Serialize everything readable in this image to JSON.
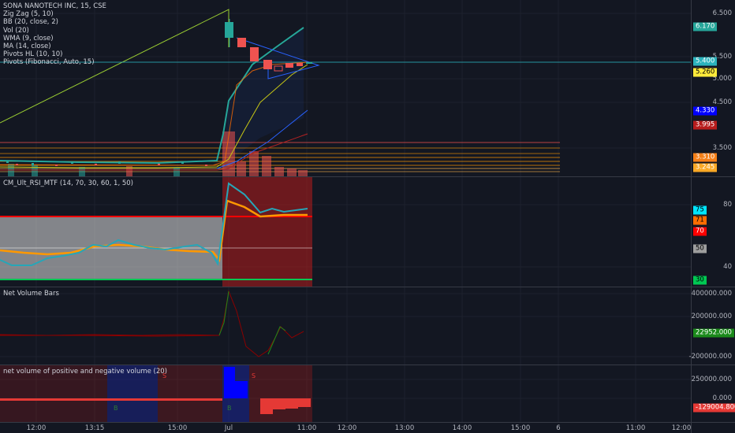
{
  "main": {
    "legend": [
      "SONA NANOTECH INC, 15, CSE",
      "Zig Zag (5, 10)",
      "BB (20, close, 2)",
      "Vol (20)",
      "WMA (9, close)",
      "MA (14, close)",
      "Pivots HL (10, 10)",
      "Pivots (Fibonacci, Auto, 15)"
    ],
    "ticks": [
      "6.500",
      "5.500",
      "5.000",
      "4.500",
      "3.500"
    ],
    "tags": [
      {
        "text": "6.170",
        "bg": "#26a69a",
        "fg": "#ffffff"
      },
      {
        "text": "5.400",
        "bg": "#2bb3bd",
        "fg": "#ffffff"
      },
      {
        "text": "5.260",
        "bg": "#ffeb3b",
        "fg": "#000000"
      },
      {
        "text": "4.330",
        "bg": "#0000ff",
        "fg": "#ffffff"
      },
      {
        "text": "3.995",
        "bg": "#b71c1c",
        "fg": "#ffffff"
      },
      {
        "text": "3.310",
        "bg": "#f57f17",
        "fg": "#ffffff"
      },
      {
        "text": "3.245",
        "bg": "#f9a825",
        "fg": "#ffffff"
      }
    ]
  },
  "rsi": {
    "legend": "CM_Ult_RSI_MTF (14, 70, 30, 60, 1, 50)",
    "ticks": [
      "80",
      "40"
    ],
    "tags": [
      {
        "text": "75",
        "bg": "#00e5ff",
        "fg": "#000000"
      },
      {
        "text": "71",
        "bg": "#ff6d00",
        "fg": "#000000"
      },
      {
        "text": "70",
        "bg": "#ff0000",
        "fg": "#ffffff"
      },
      {
        "text": "50",
        "bg": "#9e9e9e",
        "fg": "#000000"
      },
      {
        "text": "30",
        "bg": "#00c853",
        "fg": "#000000"
      }
    ]
  },
  "netvol": {
    "legend": "Net Volume Bars",
    "ticks": [
      "400000.000",
      "200000.000",
      "-200000.000"
    ],
    "tag": {
      "text": "22952.000",
      "bg": "#1b8a1b",
      "fg": "#ffffff"
    }
  },
  "posneg": {
    "legend": "net volume of positive and negative volume (20)",
    "ticks": [
      "250000.000",
      "0.000"
    ],
    "tag": {
      "text": "-129004.800",
      "bg": "#e53935",
      "fg": "#ffffff"
    },
    "signals": [
      "S",
      "B",
      "B",
      "S"
    ]
  },
  "time_axis": [
    "12:00",
    "13:15",
    "15:00",
    "Jul",
    "11:00",
    "12:00",
    "13:00",
    "14:00",
    "15:00",
    "6",
    "11:00",
    "12:00"
  ]
}
